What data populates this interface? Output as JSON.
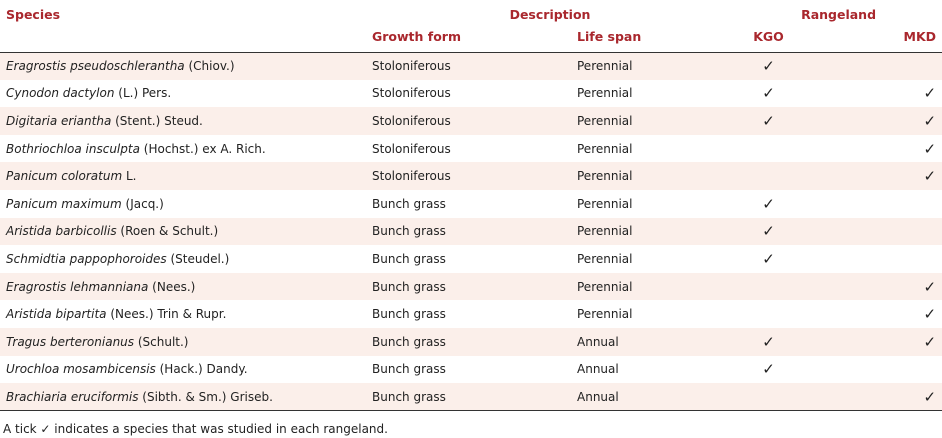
{
  "header": {
    "species": "Species",
    "description": "Description",
    "rangeland": "Rangeland",
    "growth_form": "Growth form",
    "life_span": "Life span",
    "kgo": "KGO",
    "mkd": "MKD"
  },
  "rows": [
    {
      "genus": "Eragrostis pseudoschlerantha",
      "authority": " (Chiov.)",
      "growth": "Stoloniferous",
      "life": "Perennial",
      "kgo": "✓",
      "mkd": ""
    },
    {
      "genus": "Cynodon dactylon",
      "authority": " (L.) Pers.",
      "growth": "Stoloniferous",
      "life": "Perennial",
      "kgo": "✓",
      "mkd": "✓"
    },
    {
      "genus": "Digitaria eriantha",
      "authority": " (Stent.) Steud.",
      "growth": "Stoloniferous",
      "life": "Perennial",
      "kgo": "✓",
      "mkd": "✓"
    },
    {
      "genus": "Bothriochloa insculpta",
      "authority": " (Hochst.) ex A. Rich.",
      "growth": "Stoloniferous",
      "life": "Perennial",
      "kgo": "",
      "mkd": "✓"
    },
    {
      "genus": "Panicum coloratum",
      "authority": " L.",
      "growth": "Stoloniferous",
      "life": "Perennial",
      "kgo": "",
      "mkd": "✓"
    },
    {
      "genus": "Panicum maximum",
      "authority": " (Jacq.)",
      "growth": "Bunch grass",
      "life": "Perennial",
      "kgo": "✓",
      "mkd": ""
    },
    {
      "genus": "Aristida barbicollis",
      "authority": " (Roen & Schult.)",
      "growth": "Bunch grass",
      "life": "Perennial",
      "kgo": "✓",
      "mkd": ""
    },
    {
      "genus": "Schmidtia pappophoroides",
      "authority": " (Steudel.)",
      "growth": "Bunch grass",
      "life": "Perennial",
      "kgo": "✓",
      "mkd": ""
    },
    {
      "genus": "Eragrostis lehmanniana",
      "authority": " (Nees.)",
      "growth": "Bunch grass",
      "life": "Perennial",
      "kgo": "",
      "mkd": "✓"
    },
    {
      "genus": "Aristida bipartita",
      "authority": " (Nees.) Trin & Rupr.",
      "growth": "Bunch grass",
      "life": "Perennial",
      "kgo": "",
      "mkd": "✓"
    },
    {
      "genus": "Tragus berteronianus",
      "authority": " (Schult.)",
      "growth": "Bunch grass",
      "life": "Annual",
      "kgo": "✓",
      "mkd": "✓"
    },
    {
      "genus": "Urochloa mosambicensis",
      "authority": " (Hack.) Dandy.",
      "growth": "Bunch grass",
      "life": "Annual",
      "kgo": "✓",
      "mkd": ""
    },
    {
      "genus": "Brachiaria eruciformis",
      "authority": " (Sibth. & Sm.) Griseb.",
      "growth": "Bunch grass",
      "life": "Annual",
      "kgo": "",
      "mkd": "✓"
    }
  ],
  "footnote": "A tick ✓ indicates a species that was studied in each rangeland."
}
